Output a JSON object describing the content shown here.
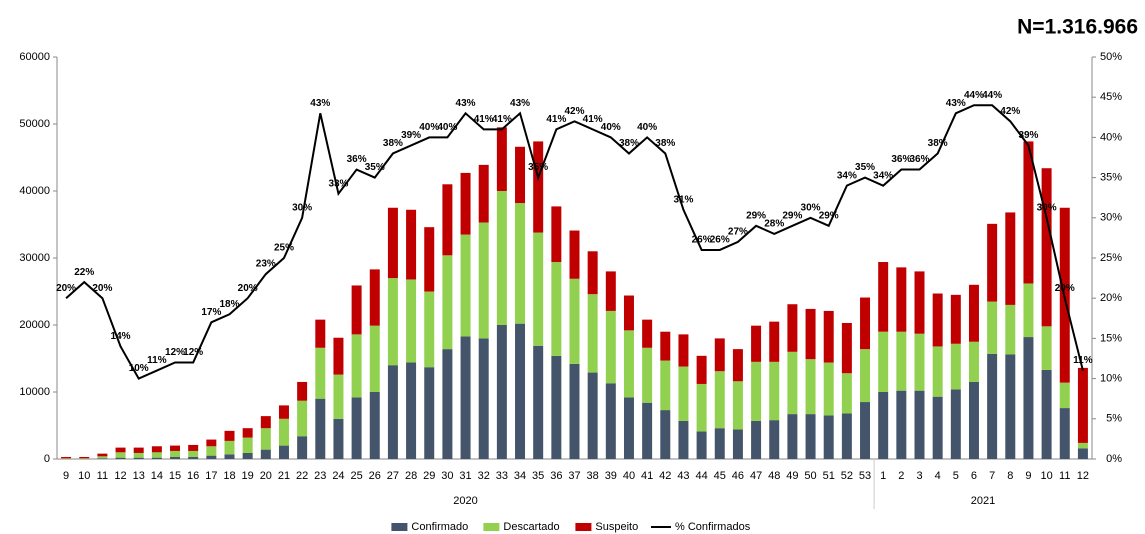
{
  "chart_data": {
    "type": "bar",
    "stacked": true,
    "annotation": "N=1.316.966",
    "categories": [
      "9",
      "10",
      "11",
      "12",
      "13",
      "14",
      "15",
      "16",
      "17",
      "18",
      "19",
      "20",
      "21",
      "22",
      "23",
      "24",
      "25",
      "26",
      "27",
      "28",
      "29",
      "30",
      "31",
      "32",
      "33",
      "34",
      "35",
      "36",
      "37",
      "38",
      "39",
      "40",
      "41",
      "42",
      "43",
      "44",
      "45",
      "46",
      "47",
      "48",
      "49",
      "50",
      "51",
      "52",
      "53",
      "1",
      "2",
      "3",
      "4",
      "5",
      "6",
      "7",
      "8",
      "9",
      "10",
      "11",
      "12"
    ],
    "group_labels": [
      "2020",
      "2021"
    ],
    "ylim": [
      0,
      60000
    ],
    "yticks": [
      0,
      10000,
      20000,
      30000,
      40000,
      50000,
      60000
    ],
    "y2lim": [
      0,
      50
    ],
    "y2ticks": [
      {
        "value": 0,
        "label": "0%"
      },
      {
        "value": 5,
        "label": "5%"
      },
      {
        "value": 10,
        "label": "10%"
      },
      {
        "value": 15,
        "label": "15%"
      },
      {
        "value": 20,
        "label": "20%"
      },
      {
        "value": 25,
        "label": "25%"
      },
      {
        "value": 30,
        "label": "30%"
      },
      {
        "value": 35,
        "label": "35%"
      },
      {
        "value": 40,
        "label": "40%"
      },
      {
        "value": 45,
        "label": "45%"
      },
      {
        "value": 50,
        "label": "50%"
      }
    ],
    "legend": "bottom",
    "series": [
      {
        "name": "Confirmado",
        "color": "#44546a",
        "values": [
          0,
          0,
          100,
          200,
          200,
          200,
          300,
          300,
          500,
          700,
          900,
          1400,
          2000,
          3400,
          9000,
          6000,
          9200,
          10000,
          14000,
          14400,
          13700,
          16400,
          18300,
          18000,
          20000,
          20200,
          16900,
          15400,
          14200,
          12900,
          11300,
          9200,
          8400,
          7300,
          5700,
          4100,
          4600,
          4400,
          5700,
          5800,
          6700,
          6700,
          6500,
          6800,
          8500,
          10000,
          10200,
          10200,
          9300,
          10400,
          11500,
          15700,
          15600,
          18200,
          13300,
          7600,
          1600
        ]
      },
      {
        "name": "Descartado",
        "color": "#92d050",
        "values": [
          100,
          100,
          300,
          800,
          700,
          800,
          900,
          900,
          1400,
          2000,
          2300,
          3200,
          4000,
          5300,
          7600,
          6600,
          9400,
          9900,
          13000,
          12400,
          11300,
          14000,
          15200,
          17300,
          20000,
          18000,
          16900,
          14000,
          12700,
          11700,
          10800,
          10000,
          8200,
          7400,
          8100,
          7100,
          8500,
          7200,
          8800,
          8700,
          9300,
          8200,
          7900,
          6000,
          7900,
          9000,
          8800,
          8500,
          7500,
          6800,
          6000,
          7800,
          7400,
          8000,
          6500,
          3800,
          800
        ]
      },
      {
        "name": "Suspeito",
        "color": "#c00000",
        "values": [
          200,
          200,
          400,
          700,
          800,
          900,
          800,
          900,
          1000,
          1500,
          1400,
          1800,
          2000,
          2800,
          4200,
          5500,
          7300,
          8400,
          10500,
          10400,
          9600,
          10600,
          9200,
          8600,
          9500,
          8400,
          13600,
          8300,
          7200,
          6400,
          5900,
          5200,
          4200,
          4300,
          4800,
          4200,
          4900,
          4800,
          5400,
          6000,
          7100,
          7500,
          7700,
          7500,
          7700,
          10400,
          9600,
          9300,
          7900,
          7300,
          8500,
          11600,
          13800,
          21200,
          23600,
          26100,
          11200
        ]
      },
      {
        "name": "% Confirmados",
        "type": "line",
        "axis": "y2",
        "color": "#000000",
        "values": [
          20,
          22,
          20,
          14,
          10,
          11,
          12,
          12,
          17,
          18,
          20,
          23,
          25,
          30,
          43,
          33,
          36,
          35,
          38,
          39,
          40,
          40,
          43,
          41,
          41,
          43,
          35,
          41,
          42,
          41,
          40,
          38,
          40,
          38,
          31,
          26,
          26,
          27,
          29,
          28,
          29,
          30,
          29,
          34,
          35,
          34,
          36,
          36,
          38,
          43,
          44,
          44,
          42,
          39,
          30,
          20,
          11
        ],
        "value_labels": [
          "20%",
          "22%",
          "20%",
          "14%",
          "10%",
          "11%",
          "12%",
          "12%",
          "17%",
          "18%",
          "20%",
          "23%",
          "25%",
          "30%",
          "43%",
          "33%",
          "36%",
          "35%",
          "38%",
          "39%",
          "40%",
          "40%",
          "43%",
          "41%",
          "41%",
          "43%",
          "35%",
          "41%",
          "42%",
          "41%",
          "40%",
          "38%",
          "40%",
          "38%",
          "31%",
          "26%",
          "26%",
          "27%",
          "29%",
          "28%",
          "29%",
          "30%",
          "29%",
          "34%",
          "35%",
          "34%",
          "36%",
          "36%",
          "38%",
          "43%",
          "44%",
          "44%",
          "42%",
          "39%",
          "30%",
          "20%",
          "11%"
        ]
      }
    ]
  }
}
